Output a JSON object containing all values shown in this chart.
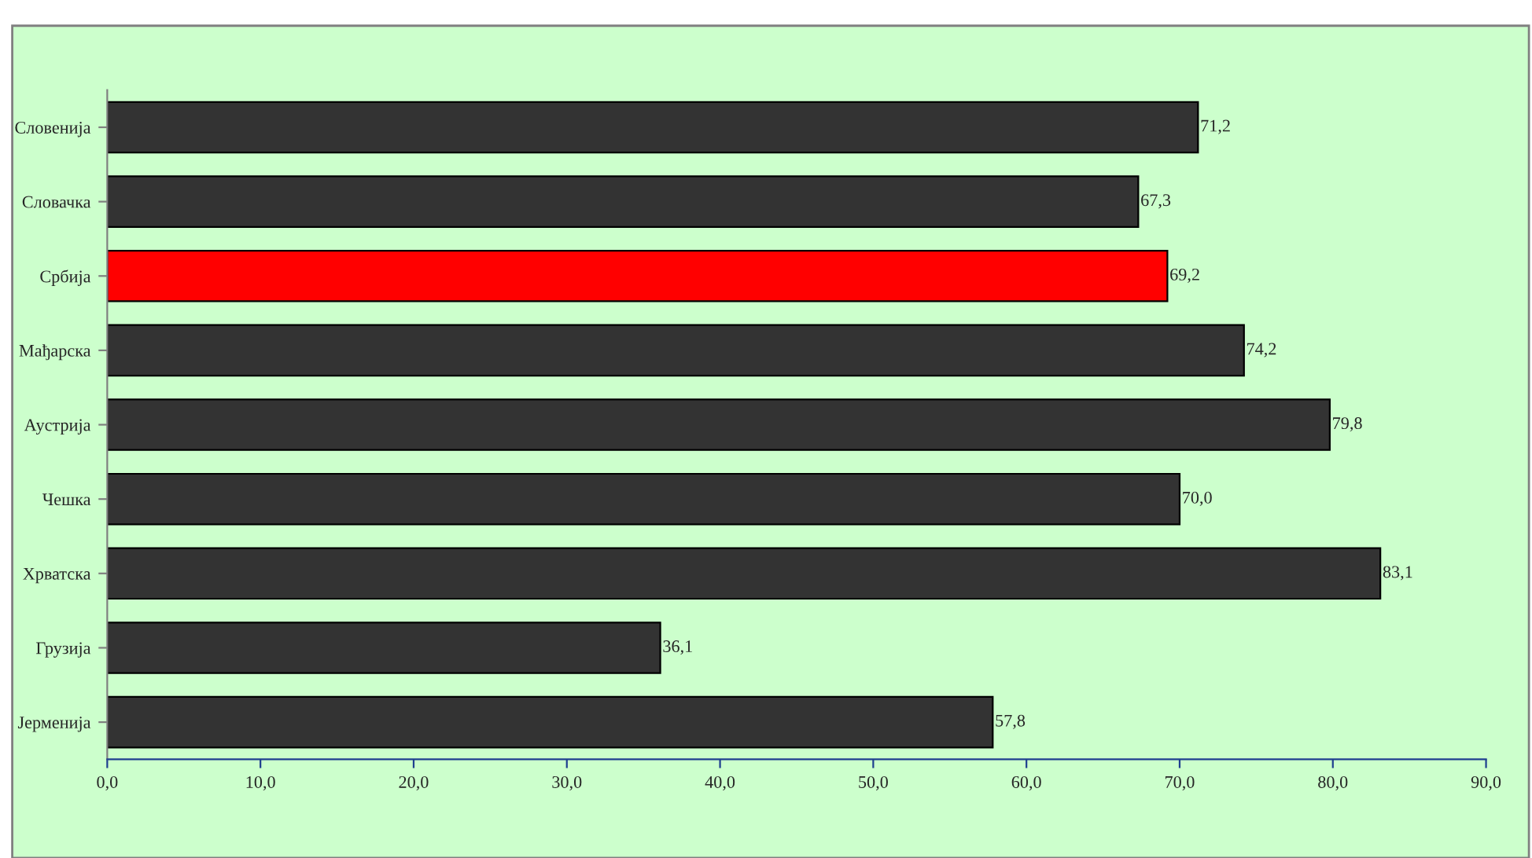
{
  "chart_data": {
    "type": "bar",
    "orientation": "horizontal",
    "categories": [
      "Словенија",
      "Словачка",
      "Србија",
      "Мађарска",
      "Аустрија",
      "Чешка",
      "Хрватска",
      "Грузија",
      "Јерменија"
    ],
    "values": [
      71.2,
      67.3,
      69.2,
      74.2,
      79.8,
      70.0,
      83.1,
      36.1,
      57.8
    ],
    "colors": [
      "#333333",
      "#333333",
      "#ff0000",
      "#333333",
      "#333333",
      "#333333",
      "#333333",
      "#333333",
      "#333333"
    ],
    "value_labels": [
      "71,2",
      "67,3",
      "69,2",
      "74,2",
      "79,8",
      "70,0",
      "83,1",
      "36,1",
      "57,8"
    ],
    "xlim": [
      0,
      90
    ],
    "xticks": [
      {
        "value": 0,
        "label": "0,0"
      },
      {
        "value": 10,
        "label": "10,0"
      },
      {
        "value": 20,
        "label": "20,0"
      },
      {
        "value": 30,
        "label": "30,0"
      },
      {
        "value": 40,
        "label": "40,0"
      },
      {
        "value": 50,
        "label": "50,0"
      },
      {
        "value": 60,
        "label": "60,0"
      },
      {
        "value": 70,
        "label": "70,0"
      },
      {
        "value": 80,
        "label": "80,0"
      },
      {
        "value": 90,
        "label": "90,0"
      }
    ],
    "grid": false,
    "legend": false
  }
}
